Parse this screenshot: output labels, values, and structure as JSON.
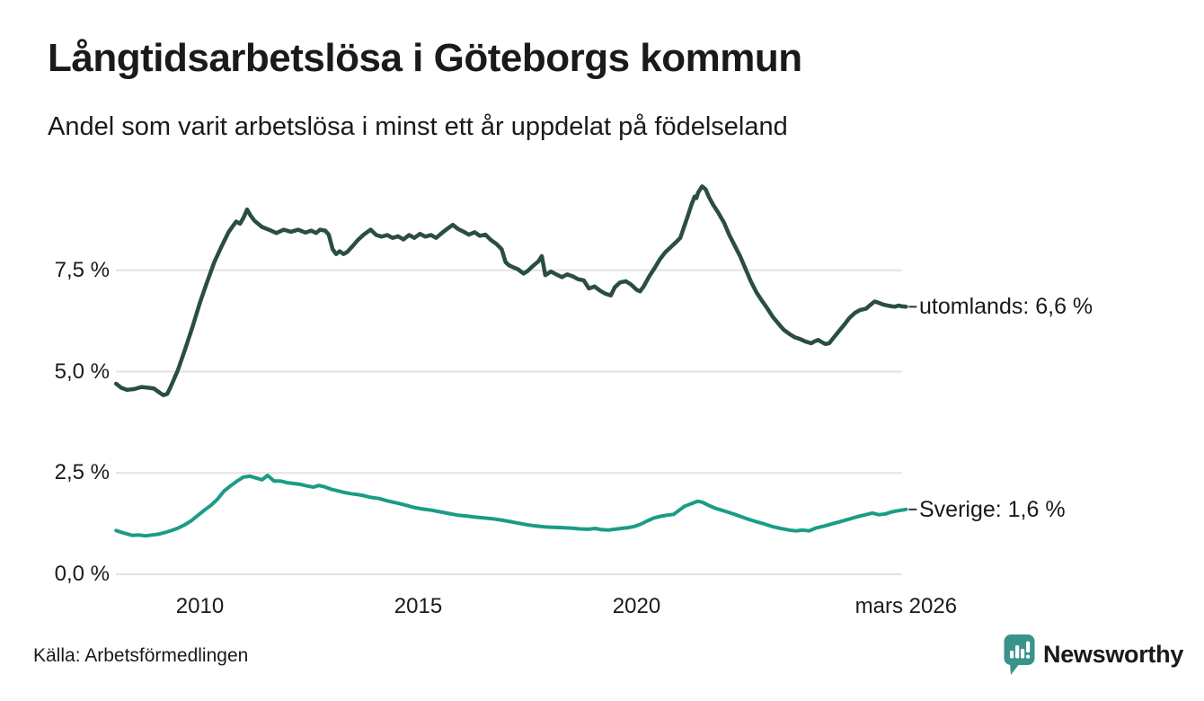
{
  "header": {
    "title": "Långtidsarbetslösa i Göteborgs kommun",
    "subtitle": "Andel som varit arbetslösa i minst ett år uppdelat på födelseland"
  },
  "footer": {
    "source": "Källa: Arbetsförmedlingen",
    "brand": "Newsworthy"
  },
  "colors": {
    "grid": "#e3e3e3",
    "text": "#1a1a1a",
    "leader_tick": "#333333",
    "brand_teal": "#3a938a",
    "series_utomlands": "#2a4d44",
    "series_sverige": "#1a9c87"
  },
  "chart_data": {
    "type": "line",
    "title": "Långtidsarbetslösa i Göteborgs kommun",
    "subtitle": "Andel som varit arbetslösa i minst ett år uppdelat på födelseland",
    "grid": true,
    "legend_position": "right of line ends",
    "x_range": [
      2008.08,
      2026.17
    ],
    "y_range": [
      0,
      10
    ],
    "x_ticks": [
      {
        "label": "2010",
        "year": 2010
      },
      {
        "label": "2015",
        "year": 2015
      },
      {
        "label": "2020",
        "year": 2020
      },
      {
        "label": "mars 2026",
        "year": 2026.17
      }
    ],
    "y_ticks": [
      {
        "label": "0,0 %",
        "value": 0
      },
      {
        "label": "2,5 %",
        "value": 2.5
      },
      {
        "label": "5,0 %",
        "value": 5
      },
      {
        "label": "7,5 %",
        "value": 7.5
      }
    ],
    "series": [
      {
        "name": "utomlands",
        "label": "utomlands: 6,6 %",
        "last_value": "6,6 %",
        "color": "#2a4d44",
        "stroke_width": 4.5,
        "points": [
          [
            2008.08,
            4.7
          ],
          [
            2008.2,
            4.6
          ],
          [
            2008.33,
            4.55
          ],
          [
            2008.5,
            4.57
          ],
          [
            2008.66,
            4.62
          ],
          [
            2008.83,
            4.6
          ],
          [
            2008.95,
            4.58
          ],
          [
            2009.08,
            4.48
          ],
          [
            2009.16,
            4.42
          ],
          [
            2009.25,
            4.45
          ],
          [
            2009.33,
            4.62
          ],
          [
            2009.5,
            5.05
          ],
          [
            2009.66,
            5.55
          ],
          [
            2009.83,
            6.1
          ],
          [
            2010.0,
            6.7
          ],
          [
            2010.16,
            7.2
          ],
          [
            2010.33,
            7.7
          ],
          [
            2010.5,
            8.1
          ],
          [
            2010.66,
            8.45
          ],
          [
            2010.83,
            8.7
          ],
          [
            2010.92,
            8.65
          ],
          [
            2011.0,
            8.8
          ],
          [
            2011.08,
            9.0
          ],
          [
            2011.16,
            8.85
          ],
          [
            2011.25,
            8.72
          ],
          [
            2011.42,
            8.57
          ],
          [
            2011.58,
            8.5
          ],
          [
            2011.75,
            8.42
          ],
          [
            2011.92,
            8.5
          ],
          [
            2012.08,
            8.45
          ],
          [
            2012.25,
            8.5
          ],
          [
            2012.42,
            8.43
          ],
          [
            2012.55,
            8.48
          ],
          [
            2012.66,
            8.42
          ],
          [
            2012.75,
            8.5
          ],
          [
            2012.87,
            8.48
          ],
          [
            2012.95,
            8.38
          ],
          [
            2013.04,
            8.02
          ],
          [
            2013.12,
            7.9
          ],
          [
            2013.2,
            7.97
          ],
          [
            2013.29,
            7.9
          ],
          [
            2013.37,
            7.95
          ],
          [
            2013.5,
            8.1
          ],
          [
            2013.62,
            8.25
          ],
          [
            2013.75,
            8.38
          ],
          [
            2013.91,
            8.5
          ],
          [
            2014.04,
            8.37
          ],
          [
            2014.16,
            8.33
          ],
          [
            2014.29,
            8.37
          ],
          [
            2014.41,
            8.3
          ],
          [
            2014.54,
            8.34
          ],
          [
            2014.66,
            8.26
          ],
          [
            2014.79,
            8.37
          ],
          [
            2014.91,
            8.3
          ],
          [
            2015.04,
            8.4
          ],
          [
            2015.16,
            8.33
          ],
          [
            2015.29,
            8.37
          ],
          [
            2015.41,
            8.3
          ],
          [
            2015.54,
            8.42
          ],
          [
            2015.66,
            8.52
          ],
          [
            2015.79,
            8.62
          ],
          [
            2015.91,
            8.52
          ],
          [
            2016.04,
            8.45
          ],
          [
            2016.16,
            8.38
          ],
          [
            2016.29,
            8.44
          ],
          [
            2016.41,
            8.35
          ],
          [
            2016.54,
            8.38
          ],
          [
            2016.66,
            8.25
          ],
          [
            2016.79,
            8.15
          ],
          [
            2016.91,
            8.02
          ],
          [
            2017.0,
            7.7
          ],
          [
            2017.08,
            7.62
          ],
          [
            2017.16,
            7.58
          ],
          [
            2017.29,
            7.52
          ],
          [
            2017.41,
            7.42
          ],
          [
            2017.5,
            7.48
          ],
          [
            2017.62,
            7.6
          ],
          [
            2017.75,
            7.72
          ],
          [
            2017.83,
            7.85
          ],
          [
            2017.91,
            7.38
          ],
          [
            2018.04,
            7.47
          ],
          [
            2018.16,
            7.4
          ],
          [
            2018.29,
            7.33
          ],
          [
            2018.41,
            7.4
          ],
          [
            2018.54,
            7.35
          ],
          [
            2018.66,
            7.28
          ],
          [
            2018.79,
            7.25
          ],
          [
            2018.91,
            7.05
          ],
          [
            2019.04,
            7.1
          ],
          [
            2019.16,
            7.0
          ],
          [
            2019.29,
            6.92
          ],
          [
            2019.41,
            6.88
          ],
          [
            2019.5,
            7.08
          ],
          [
            2019.62,
            7.2
          ],
          [
            2019.75,
            7.23
          ],
          [
            2019.87,
            7.15
          ],
          [
            2020.0,
            7.02
          ],
          [
            2020.08,
            6.98
          ],
          [
            2020.16,
            7.1
          ],
          [
            2020.29,
            7.35
          ],
          [
            2020.41,
            7.55
          ],
          [
            2020.54,
            7.78
          ],
          [
            2020.66,
            7.95
          ],
          [
            2020.79,
            8.08
          ],
          [
            2020.91,
            8.2
          ],
          [
            2021.0,
            8.3
          ],
          [
            2021.08,
            8.55
          ],
          [
            2021.16,
            8.8
          ],
          [
            2021.25,
            9.1
          ],
          [
            2021.33,
            9.32
          ],
          [
            2021.37,
            9.28
          ],
          [
            2021.41,
            9.42
          ],
          [
            2021.5,
            9.57
          ],
          [
            2021.58,
            9.5
          ],
          [
            2021.66,
            9.3
          ],
          [
            2021.75,
            9.12
          ],
          [
            2021.87,
            8.92
          ],
          [
            2022.0,
            8.68
          ],
          [
            2022.12,
            8.38
          ],
          [
            2022.25,
            8.1
          ],
          [
            2022.37,
            7.85
          ],
          [
            2022.5,
            7.52
          ],
          [
            2022.62,
            7.22
          ],
          [
            2022.75,
            6.95
          ],
          [
            2022.87,
            6.75
          ],
          [
            2023.0,
            6.55
          ],
          [
            2023.12,
            6.35
          ],
          [
            2023.25,
            6.18
          ],
          [
            2023.37,
            6.03
          ],
          [
            2023.5,
            5.93
          ],
          [
            2023.62,
            5.85
          ],
          [
            2023.75,
            5.8
          ],
          [
            2023.87,
            5.74
          ],
          [
            2024.0,
            5.7
          ],
          [
            2024.08,
            5.75
          ],
          [
            2024.16,
            5.78
          ],
          [
            2024.25,
            5.72
          ],
          [
            2024.33,
            5.68
          ],
          [
            2024.41,
            5.7
          ],
          [
            2024.5,
            5.82
          ],
          [
            2024.62,
            5.98
          ],
          [
            2024.75,
            6.15
          ],
          [
            2024.87,
            6.32
          ],
          [
            2025.0,
            6.45
          ],
          [
            2025.12,
            6.52
          ],
          [
            2025.25,
            6.55
          ],
          [
            2025.37,
            6.66
          ],
          [
            2025.45,
            6.73
          ],
          [
            2025.54,
            6.7
          ],
          [
            2025.66,
            6.65
          ],
          [
            2025.79,
            6.62
          ],
          [
            2025.91,
            6.6
          ],
          [
            2026.0,
            6.63
          ],
          [
            2026.08,
            6.61
          ],
          [
            2026.17,
            6.6
          ]
        ]
      },
      {
        "name": "Sverige",
        "label": "Sverige: 1,6 %",
        "last_value": "1,6 %",
        "color": "#1a9c87",
        "stroke_width": 4,
        "points": [
          [
            2008.08,
            1.08
          ],
          [
            2008.25,
            1.02
          ],
          [
            2008.45,
            0.96
          ],
          [
            2008.6,
            0.97
          ],
          [
            2008.75,
            0.95
          ],
          [
            2008.9,
            0.97
          ],
          [
            2009.05,
            0.99
          ],
          [
            2009.2,
            1.03
          ],
          [
            2009.35,
            1.08
          ],
          [
            2009.5,
            1.14
          ],
          [
            2009.65,
            1.22
          ],
          [
            2009.8,
            1.32
          ],
          [
            2009.95,
            1.45
          ],
          [
            2010.1,
            1.58
          ],
          [
            2010.25,
            1.7
          ],
          [
            2010.4,
            1.85
          ],
          [
            2010.55,
            2.05
          ],
          [
            2010.7,
            2.18
          ],
          [
            2010.85,
            2.3
          ],
          [
            2011.0,
            2.4
          ],
          [
            2011.15,
            2.42
          ],
          [
            2011.3,
            2.37
          ],
          [
            2011.42,
            2.33
          ],
          [
            2011.55,
            2.44
          ],
          [
            2011.7,
            2.3
          ],
          [
            2011.85,
            2.3
          ],
          [
            2012.0,
            2.26
          ],
          [
            2012.15,
            2.24
          ],
          [
            2012.3,
            2.22
          ],
          [
            2012.45,
            2.18
          ],
          [
            2012.6,
            2.15
          ],
          [
            2012.72,
            2.19
          ],
          [
            2012.85,
            2.16
          ],
          [
            2013.0,
            2.1
          ],
          [
            2013.15,
            2.06
          ],
          [
            2013.3,
            2.02
          ],
          [
            2013.45,
            1.99
          ],
          [
            2013.6,
            1.97
          ],
          [
            2013.75,
            1.94
          ],
          [
            2013.9,
            1.9
          ],
          [
            2014.1,
            1.87
          ],
          [
            2014.3,
            1.81
          ],
          [
            2014.5,
            1.76
          ],
          [
            2014.7,
            1.71
          ],
          [
            2014.9,
            1.65
          ],
          [
            2015.1,
            1.61
          ],
          [
            2015.3,
            1.58
          ],
          [
            2015.5,
            1.54
          ],
          [
            2015.7,
            1.5
          ],
          [
            2015.9,
            1.46
          ],
          [
            2016.1,
            1.44
          ],
          [
            2016.3,
            1.41
          ],
          [
            2016.5,
            1.39
          ],
          [
            2016.7,
            1.37
          ],
          [
            2016.9,
            1.34
          ],
          [
            2017.1,
            1.3
          ],
          [
            2017.3,
            1.26
          ],
          [
            2017.5,
            1.22
          ],
          [
            2017.7,
            1.19
          ],
          [
            2017.9,
            1.17
          ],
          [
            2018.1,
            1.16
          ],
          [
            2018.3,
            1.15
          ],
          [
            2018.5,
            1.14
          ],
          [
            2018.7,
            1.12
          ],
          [
            2018.9,
            1.11
          ],
          [
            2019.05,
            1.13
          ],
          [
            2019.2,
            1.1
          ],
          [
            2019.35,
            1.09
          ],
          [
            2019.5,
            1.11
          ],
          [
            2019.65,
            1.13
          ],
          [
            2019.8,
            1.15
          ],
          [
            2019.95,
            1.18
          ],
          [
            2020.1,
            1.24
          ],
          [
            2020.25,
            1.32
          ],
          [
            2020.4,
            1.39
          ],
          [
            2020.55,
            1.43
          ],
          [
            2020.7,
            1.46
          ],
          [
            2020.85,
            1.48
          ],
          [
            2021.0,
            1.6
          ],
          [
            2021.1,
            1.68
          ],
          [
            2021.25,
            1.74
          ],
          [
            2021.4,
            1.8
          ],
          [
            2021.5,
            1.78
          ],
          [
            2021.65,
            1.7
          ],
          [
            2021.8,
            1.63
          ],
          [
            2021.95,
            1.58
          ],
          [
            2022.1,
            1.53
          ],
          [
            2022.3,
            1.46
          ],
          [
            2022.5,
            1.38
          ],
          [
            2022.7,
            1.31
          ],
          [
            2022.9,
            1.25
          ],
          [
            2023.1,
            1.18
          ],
          [
            2023.3,
            1.13
          ],
          [
            2023.5,
            1.09
          ],
          [
            2023.65,
            1.07
          ],
          [
            2023.8,
            1.09
          ],
          [
            2023.95,
            1.07
          ],
          [
            2024.1,
            1.14
          ],
          [
            2024.3,
            1.19
          ],
          [
            2024.5,
            1.25
          ],
          [
            2024.7,
            1.31
          ],
          [
            2024.9,
            1.37
          ],
          [
            2025.05,
            1.42
          ],
          [
            2025.25,
            1.47
          ],
          [
            2025.4,
            1.51
          ],
          [
            2025.55,
            1.47
          ],
          [
            2025.7,
            1.49
          ],
          [
            2025.85,
            1.54
          ],
          [
            2026.0,
            1.57
          ],
          [
            2026.17,
            1.6
          ]
        ]
      }
    ]
  }
}
